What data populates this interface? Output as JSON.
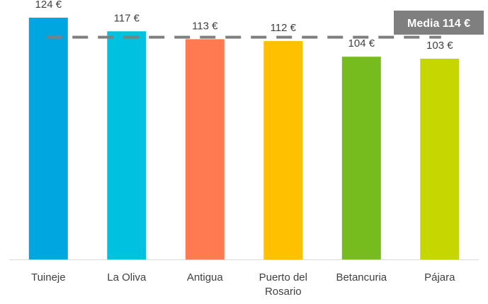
{
  "chart_data": {
    "type": "bar",
    "categories": [
      [
        "Tuineje"
      ],
      [
        "La Oliva"
      ],
      [
        "Antigua"
      ],
      [
        "Puerto del",
        "Rosario"
      ],
      [
        "Betancuria"
      ],
      [
        "Pájara"
      ]
    ],
    "values": [
      124,
      117,
      113,
      112,
      104,
      103
    ],
    "value_labels": [
      "124 €",
      "117 €",
      "113 €",
      "112 €",
      "104 €",
      "103 €"
    ],
    "colors": [
      "#00A6DF",
      "#00C2E0",
      "#FF7A51",
      "#FFC000",
      "#77BC1F",
      "#C5D600"
    ],
    "ylim": [
      0,
      130
    ],
    "grid": false,
    "reference_line": {
      "value": 114,
      "label": "Media 114 €",
      "color": "#7F7F7F",
      "style": "dashed"
    }
  }
}
